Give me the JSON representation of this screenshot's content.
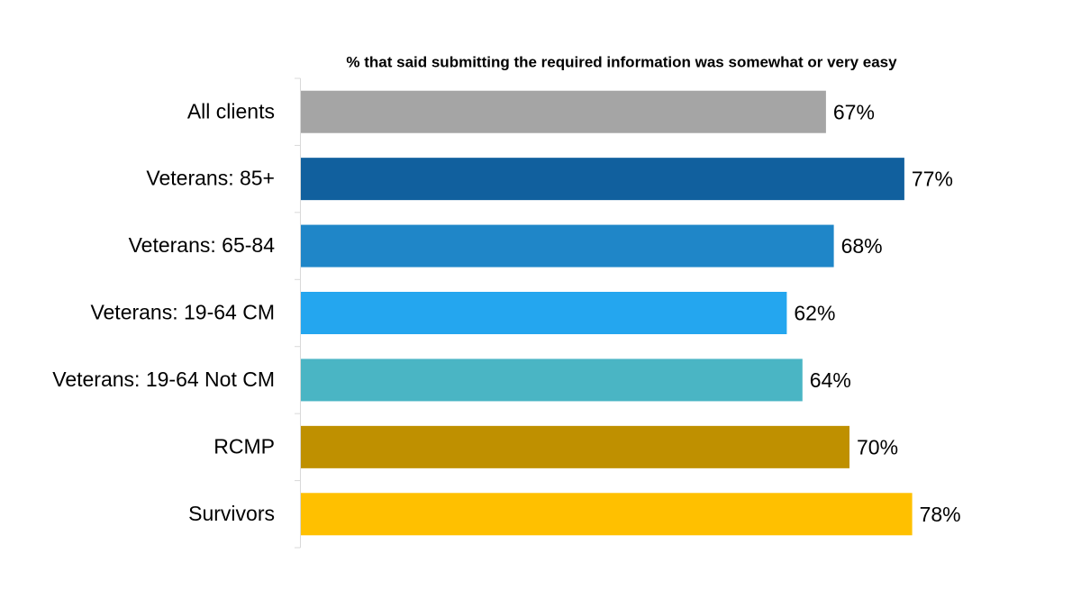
{
  "chart_data": {
    "type": "bar",
    "orientation": "horizontal",
    "title": "% that said submitting the required information was somewhat or very easy",
    "categories": [
      "All clients",
      "Veterans: 85+",
      "Veterans: 65-84",
      "Veterans: 19-64 CM",
      "Veterans: 19-64 Not CM",
      "RCMP",
      "Survivors"
    ],
    "values": [
      67,
      77,
      68,
      62,
      64,
      70,
      78
    ],
    "value_labels": [
      "67%",
      "77%",
      "68%",
      "62%",
      "64%",
      "70%",
      "78%"
    ],
    "colors": [
      "#a5a5a5",
      "#11609e",
      "#1f86c8",
      "#24a6ef",
      "#4ab5c4",
      "#bf9000",
      "#ffc000"
    ]
  }
}
